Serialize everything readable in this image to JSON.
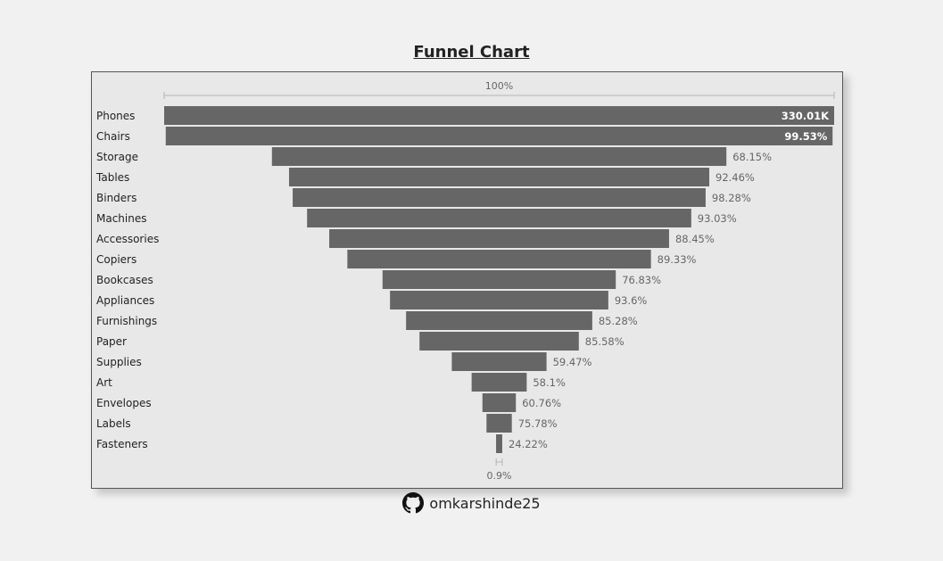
{
  "title": "Funnel Chart",
  "footer": {
    "username": "omkarshinde25",
    "icon": "github-icon"
  },
  "colors": {
    "bar": "#666666",
    "background": "#f1f1f1",
    "card": "#e8e8e8",
    "text": "#222222",
    "muted": "#666666"
  },
  "chart_data": {
    "type": "funnel",
    "top_label": "100%",
    "bottom_label": "0.9%",
    "first_value_label": "330.01K",
    "bottom_fraction": 0.009,
    "categories": [
      "Phones",
      "Chairs",
      "Storage",
      "Tables",
      "Binders",
      "Machines",
      "Accessories",
      "Copiers",
      "Bookcases",
      "Appliances",
      "Furnishings",
      "Paper",
      "Supplies",
      "Art",
      "Envelopes",
      "Labels",
      "Fasteners"
    ],
    "fractions_of_top": [
      1.0,
      0.9953,
      0.6783,
      0.6272,
      0.6163,
      0.5734,
      0.5072,
      0.4531,
      0.3481,
      0.3258,
      0.2779,
      0.2378,
      0.1414,
      0.0822,
      0.0499,
      0.0378,
      0.0092
    ],
    "step_labels": [
      "330.01K",
      "99.53%",
      "68.15%",
      "92.46%",
      "98.28%",
      "93.03%",
      "88.45%",
      "89.33%",
      "76.83%",
      "93.6%",
      "85.28%",
      "85.58%",
      "59.47%",
      "58.1%",
      "60.76%",
      "75.78%",
      "24.22%"
    ],
    "label_inside": [
      true,
      true,
      false,
      false,
      false,
      false,
      false,
      false,
      false,
      false,
      false,
      false,
      false,
      false,
      false,
      false,
      false
    ]
  }
}
